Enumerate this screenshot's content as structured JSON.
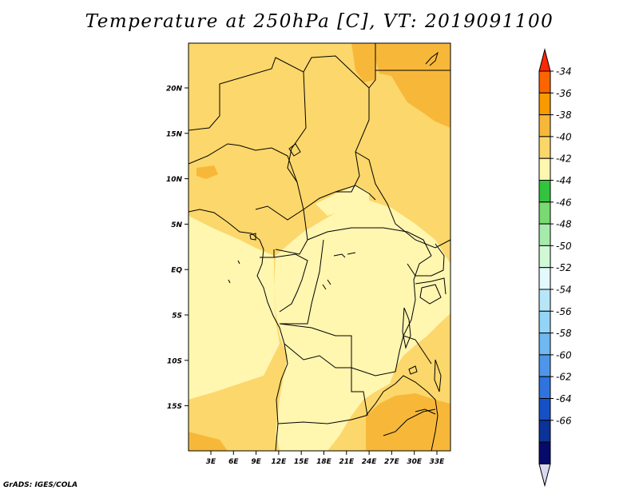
{
  "title": "Temperature at 250hPa [C], VT: 2019091100",
  "credit": "GrADS: IGES/COLA",
  "lat_labels": [
    "20N",
    "15N",
    "10N",
    "5N",
    "EQ",
    "5S",
    "10S",
    "15S"
  ],
  "lon_labels": [
    "3E",
    "6E",
    "9E",
    "12E",
    "15E",
    "18E",
    "21E",
    "24E",
    "27E",
    "30E",
    "33E"
  ],
  "colorbar": {
    "labels": [
      "-34",
      "-36",
      "-38",
      "-40",
      "-42",
      "-44",
      "-46",
      "-48",
      "-50",
      "-52",
      "-54",
      "-56",
      "-58",
      "-60",
      "-62",
      "-64",
      "-66"
    ],
    "colors": [
      "#ff2800",
      "#fd6400",
      "#f99a00",
      "#f7b83a",
      "#fbd76a",
      "#fff6b0",
      "#33c43d",
      "#78da71",
      "#a6ebab",
      "#d2f9d6",
      "#e4f9fb",
      "#b8e6f9",
      "#93d4f7",
      "#6fb8f1",
      "#4e96ea",
      "#2f73df",
      "#1550c4",
      "#0a3299",
      "#060a6a",
      "#d8d8f2"
    ]
  },
  "map_colors": {
    "t40": "#fcd76b",
    "t38": "#f7b83a",
    "t42": "#fff6b0",
    "boundary": "#000000"
  }
}
